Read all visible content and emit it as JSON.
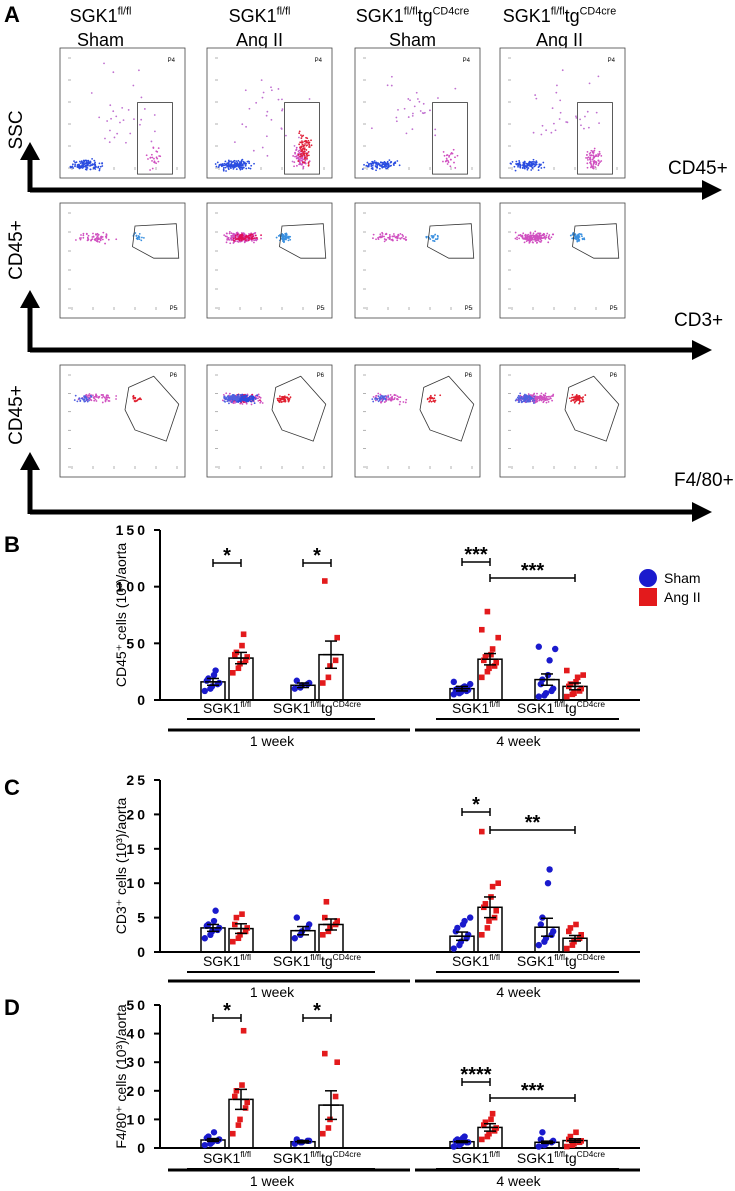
{
  "panel_a": {
    "letter": "A",
    "columns": [
      {
        "genotype": {
          "parts": [
            "SGK1",
            "fl/fl"
          ]
        },
        "condition": "Sham"
      },
      {
        "genotype": {
          "parts": [
            "SGK1",
            "fl/fl"
          ]
        },
        "condition": "Ang II"
      },
      {
        "genotype": {
          "parts": [
            "SGK1",
            "fl/fl",
            "tg",
            "CD4cre"
          ]
        },
        "condition": "Sham"
      },
      {
        "genotype": {
          "parts": [
            "SGK1",
            "fl/fl",
            "tg",
            "CD4cre"
          ]
        },
        "condition": "Ang II"
      }
    ],
    "rows": [
      {
        "y_label": "SSC",
        "x_label": "CD45+",
        "gate": "P4"
      },
      {
        "y_label": "CD45+",
        "x_label": "CD3+",
        "gate": "P5"
      },
      {
        "y_label": "CD45+",
        "x_label": "F4/80+",
        "gate": "P6"
      }
    ]
  },
  "chart_data": [
    {
      "type": "bar",
      "panel": "B",
      "y_label": "CD45⁺ cells (10³)/aorta",
      "ylim": [
        0,
        150
      ],
      "yticks": [
        0,
        50,
        100,
        150
      ],
      "categories": [
        {
          "parts": [
            "SGK1",
            "fl/fl"
          ]
        },
        {
          "parts": [
            "SGK1",
            "fl/fl",
            "tg",
            "CD4cre"
          ]
        },
        {
          "parts": [
            "SGK1",
            "fl/fl"
          ]
        },
        {
          "parts": [
            "SGK1",
            "fl/fl",
            "tg",
            "CD4cre"
          ]
        }
      ],
      "periods": [
        "1 week",
        "4 week"
      ],
      "series": [
        {
          "name": "Sham",
          "color": "#1a1acd",
          "values": [
            16,
            13,
            10,
            18
          ],
          "errors": [
            3,
            2,
            2,
            5
          ],
          "points": [
            [
              8,
              10,
              12,
              14,
              15,
              17,
              19,
              22,
              26
            ],
            [
              10,
              11,
              13,
              14,
              15,
              17
            ],
            [
              5,
              6,
              7,
              8,
              9,
              9,
              10,
              11,
              12,
              14,
              16
            ],
            [
              3,
              4,
              6,
              8,
              10,
              14,
              18,
              22,
              35,
              45,
              47
            ]
          ]
        },
        {
          "name": "Ang II",
          "color": "#e31a1c",
          "values": [
            37,
            40,
            36,
            12
          ],
          "errors": [
            5,
            12,
            5,
            3
          ],
          "points": [
            [
              24,
              28,
              32,
              35,
              38,
              40,
              42,
              48,
              58
            ],
            [
              15,
              20,
              30,
              35,
              55,
              105
            ],
            [
              20,
              25,
              28,
              30,
              33,
              35,
              38,
              40,
              45,
              55,
              62,
              78
            ],
            [
              3,
              5,
              6,
              8,
              10,
              12,
              14,
              16,
              20,
              22,
              26
            ]
          ]
        }
      ],
      "annotations": [
        "*",
        "*",
        "***",
        "***"
      ]
    },
    {
      "type": "bar",
      "panel": "C",
      "y_label": "CD3⁺ cells (10³)/aorta",
      "ylim": [
        0,
        25
      ],
      "yticks": [
        0,
        5,
        10,
        15,
        20,
        25
      ],
      "categories": [
        {
          "parts": [
            "SGK1",
            "fl/fl"
          ]
        },
        {
          "parts": [
            "SGK1",
            "fl/fl",
            "tg",
            "CD4cre"
          ]
        },
        {
          "parts": [
            "SGK1",
            "fl/fl"
          ]
        },
        {
          "parts": [
            "SGK1",
            "fl/fl",
            "tg",
            "CD4cre"
          ]
        }
      ],
      "periods": [
        "1 week",
        "4 week"
      ],
      "series": [
        {
          "color": "#1a1acd",
          "values": [
            3.5,
            3.1,
            2.3,
            3.6
          ],
          "errors": [
            0.5,
            0.6,
            0.6,
            1.3
          ],
          "points": [
            [
              2,
              2.5,
              3,
              3.2,
              3.5,
              3.8,
              4,
              4.5,
              6
            ],
            [
              2,
              2.5,
              3,
              3.5,
              4,
              5
            ],
            [
              0.5,
              1,
              1.5,
              2,
              2.5,
              3,
              3.5,
              4,
              4.5,
              5
            ],
            [
              1,
              1.5,
              2,
              2.5,
              3,
              4,
              5,
              10,
              12
            ]
          ]
        },
        {
          "color": "#e31a1c",
          "values": [
            3.4,
            4,
            6.5,
            2
          ],
          "errors": [
            0.7,
            0.8,
            1.5,
            0.4
          ],
          "points": [
            [
              1.5,
              2,
              2.5,
              3,
              3.5,
              4,
              5,
              5.5
            ],
            [
              2.5,
              3,
              3.5,
              4,
              4.5,
              5,
              7.3
            ],
            [
              2.5,
              3.5,
              4.5,
              5,
              6,
              6.5,
              7,
              8,
              9.5,
              10,
              17.5
            ],
            [
              0.5,
              1,
              1.5,
              2,
              2.5,
              3,
              3.5,
              4
            ]
          ]
        }
      ],
      "annotations": [
        "*",
        "**"
      ]
    },
    {
      "type": "bar",
      "panel": "D",
      "y_label": "F4/80⁺ cells (10³)/aorta",
      "ylim": [
        0,
        50
      ],
      "yticks": [
        0,
        10,
        20,
        30,
        40,
        50
      ],
      "categories": [
        {
          "parts": [
            "SGK1",
            "fl/fl"
          ]
        },
        {
          "parts": [
            "SGK1",
            "fl/fl",
            "tg",
            "CD4cre"
          ]
        },
        {
          "parts": [
            "SGK1",
            "fl/fl"
          ]
        },
        {
          "parts": [
            "SGK1",
            "fl/fl",
            "tg",
            "CD4cre"
          ]
        }
      ],
      "periods": [
        "1 week",
        "4 week"
      ],
      "series": [
        {
          "color": "#1a1acd",
          "values": [
            2.8,
            2.2,
            2.2,
            2
          ],
          "errors": [
            0.5,
            0.4,
            0.3,
            0.4
          ],
          "points": [
            [
              1,
              1.5,
              2,
              2.5,
              3,
              3.5,
              4,
              5.5
            ],
            [
              1.5,
              2,
              2,
              2.5,
              2.5,
              3
            ],
            [
              0.5,
              1,
              1.5,
              2,
              2,
              2.5,
              3,
              3.5,
              4
            ],
            [
              0.5,
              1,
              1.5,
              2,
              2.5,
              3,
              5.5
            ]
          ]
        },
        {
          "color": "#e31a1c",
          "values": [
            17,
            15,
            7.2,
            2.6
          ],
          "errors": [
            3.5,
            5,
            1.3,
            0.6
          ],
          "points": [
            [
              5,
              8,
              10,
              14,
              16,
              18,
              20,
              22,
              41
            ],
            [
              5,
              7,
              10,
              18,
              30,
              33
            ],
            [
              3,
              4,
              5,
              6,
              7,
              8,
              9,
              10,
              12
            ],
            [
              0.5,
              1,
              1.5,
              2,
              2.5,
              3,
              4,
              5.5
            ]
          ]
        }
      ],
      "annotations": [
        "*",
        "*",
        "****",
        "***"
      ]
    }
  ]
}
